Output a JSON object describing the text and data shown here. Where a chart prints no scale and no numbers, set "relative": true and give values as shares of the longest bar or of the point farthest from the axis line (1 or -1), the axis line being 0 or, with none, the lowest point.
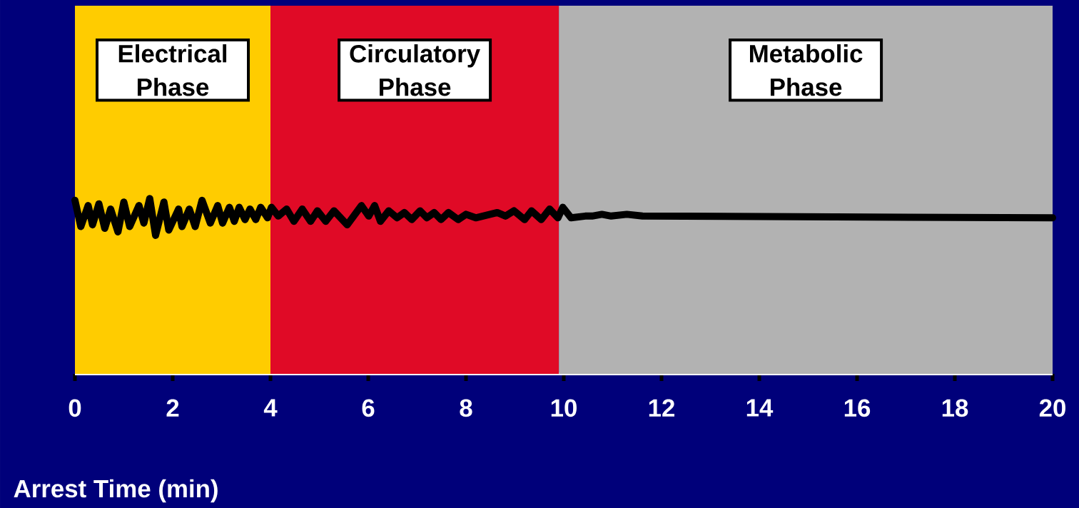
{
  "chart_data": {
    "type": "line",
    "relative": true,
    "xlabel": "Arrest Time (min)",
    "xlim": [
      0,
      20
    ],
    "xticks": [
      0,
      2,
      4,
      6,
      8,
      10,
      12,
      14,
      16,
      18,
      20
    ],
    "bands": [
      {
        "axis": "x",
        "from": 0,
        "to": 4,
        "label": "Electrical Phase",
        "color": "#ffcc00"
      },
      {
        "axis": "x",
        "from": 4,
        "to": 9.9,
        "label": "Circulatory Phase",
        "color": "#e00a26"
      },
      {
        "axis": "x",
        "from": 9.9,
        "to": 20,
        "label": "Metabolic Phase",
        "color": "#b2b2b2"
      }
    ],
    "line_style": "solid",
    "x": [
      0,
      0.12,
      0.27,
      0.36,
      0.49,
      0.61,
      0.73,
      0.88,
      1.0,
      1.12,
      1.31,
      1.41,
      1.53,
      1.65,
      1.82,
      1.92,
      2.12,
      2.19,
      2.34,
      2.46,
      2.6,
      2.77,
      2.92,
      3.02,
      3.16,
      3.26,
      3.36,
      3.48,
      3.58,
      3.7,
      3.8,
      3.94,
      4.02,
      4.16,
      4.33,
      4.48,
      4.65,
      4.82,
      4.96,
      5.13,
      5.3,
      5.57,
      5.86,
      6.01,
      6.13,
      6.25,
      6.42,
      6.59,
      6.74,
      6.89,
      7.06,
      7.2,
      7.35,
      7.49,
      7.64,
      7.84,
      8.0,
      8.2,
      8.64,
      8.81,
      8.98,
      9.2,
      9.34,
      9.54,
      9.71,
      9.88,
      9.98,
      10.15,
      10.44,
      10.58,
      10.78,
      10.97,
      11.29,
      11.61,
      20
    ],
    "series": [
      {
        "color": "#000000",
        "values": [
          0.99,
          0.84,
          0.96,
          0.85,
          0.97,
          0.83,
          0.94,
          0.81,
          0.98,
          0.84,
          0.96,
          0.86,
          1.0,
          0.79,
          0.98,
          0.82,
          0.94,
          0.84,
          0.94,
          0.84,
          0.99,
          0.86,
          0.96,
          0.86,
          0.95,
          0.87,
          0.95,
          0.88,
          0.94,
          0.88,
          0.95,
          0.89,
          0.95,
          0.9,
          0.94,
          0.87,
          0.94,
          0.87,
          0.93,
          0.87,
          0.93,
          0.85,
          0.96,
          0.9,
          0.96,
          0.87,
          0.93,
          0.89,
          0.92,
          0.88,
          0.93,
          0.89,
          0.92,
          0.88,
          0.92,
          0.88,
          0.91,
          0.89,
          0.92,
          0.9,
          0.93,
          0.88,
          0.93,
          0.88,
          0.94,
          0.89,
          0.95,
          0.89,
          0.9,
          0.9,
          0.91,
          0.9,
          0.91,
          0.9,
          0.89
        ]
      }
    ]
  }
}
